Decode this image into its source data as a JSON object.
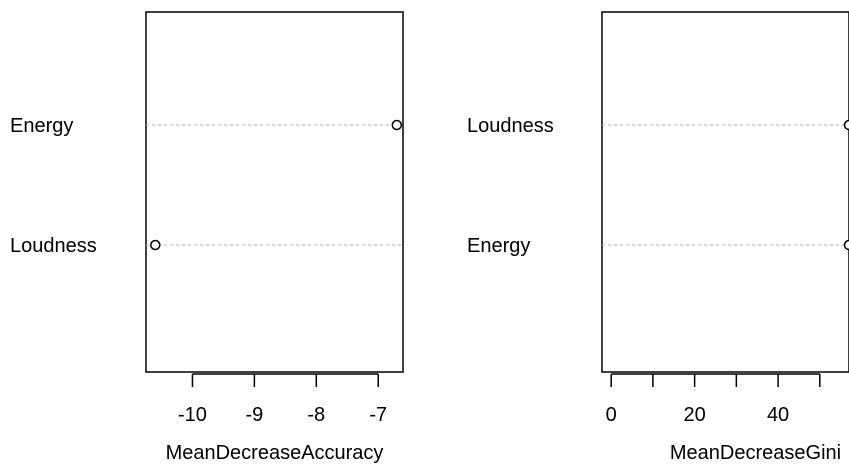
{
  "chart_data": [
    {
      "type": "scatter",
      "title": "",
      "xlabel": "MeanDecreaseAccuracy",
      "ylabel": "",
      "categories": [
        "Energy",
        "Loudness"
      ],
      "values": [
        -6.7,
        -10.6
      ],
      "xlim": [
        -10.75,
        -6.6
      ],
      "xticks": [
        -10,
        -9,
        -8,
        -7
      ],
      "grid": "dotted horizontal guide per variable",
      "legend": "none"
    },
    {
      "type": "scatter",
      "title": "",
      "xlabel": "MeanDecreaseGini",
      "ylabel": "",
      "categories": [
        "Loudness",
        "Energy"
      ],
      "values": [
        57,
        57
      ],
      "xlim": [
        -2.2,
        57
      ],
      "xticks": [
        0,
        10,
        20,
        30,
        40,
        50
      ],
      "xtick_labels": [
        "0",
        "20",
        "40"
      ],
      "grid": "dotted horizontal guide per variable",
      "legend": "none"
    }
  ],
  "colors": {
    "points": "#000000",
    "guides": "#b0b0b0",
    "frame": "#000000"
  }
}
